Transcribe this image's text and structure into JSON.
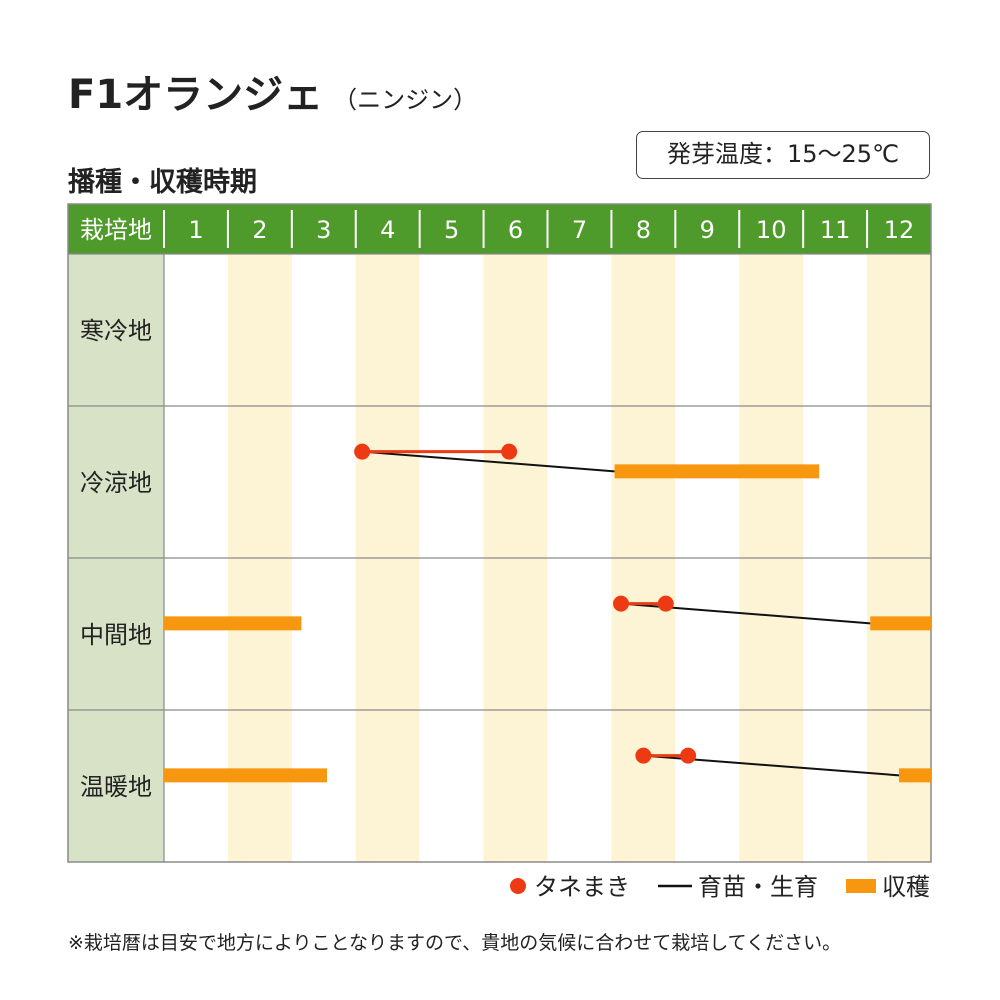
{
  "title": "F1オランジェ",
  "subtitle": "（ニンジン）",
  "section_title": "播種・収穫時期",
  "germination_temp": "発芽温度：15〜25℃",
  "footnote": "※栽培暦は目安で地方によりことなりますので、貴地の気候に合わせて栽培してください。",
  "colors": {
    "header_green": "#4e9a2a",
    "region_bg": "#d7e2c7",
    "stripe": "#fdf4d6",
    "sowing": "#ee3a12",
    "seedling": "#111111",
    "harvest": "#f7960f",
    "grid": "#8a8a8a"
  },
  "chart_data": {
    "type": "table",
    "header_label": "栽培地",
    "months": [
      "1",
      "2",
      "3",
      "4",
      "5",
      "6",
      "7",
      "8",
      "9",
      "10",
      "11",
      "12"
    ],
    "regions": [
      {
        "name": "寒冷地",
        "sowing": [],
        "seedling": [],
        "harvest": []
      },
      {
        "name": "冷涼地",
        "sowing": [
          [
            4.1,
            6.4
          ]
        ],
        "seedling": [
          [
            4.1,
            8.05
          ]
        ],
        "harvest": [
          [
            8.05,
            11.25
          ]
        ]
      },
      {
        "name": "中間地",
        "sowing": [
          [
            8.15,
            8.85
          ]
        ],
        "seedling": [
          [
            8.15,
            12.05
          ]
        ],
        "harvest": [
          [
            1.0,
            3.15
          ],
          [
            12.05,
            13.0
          ]
        ]
      },
      {
        "name": "温暖地",
        "sowing": [
          [
            8.5,
            9.2
          ]
        ],
        "seedling": [
          [
            8.5,
            12.5
          ]
        ],
        "harvest": [
          [
            1.0,
            3.55
          ],
          [
            12.5,
            13.0
          ]
        ]
      }
    ],
    "legend": [
      {
        "symbol": "dot",
        "label": "タネまき"
      },
      {
        "symbol": "line",
        "label": "育苗・生育"
      },
      {
        "symbol": "bar",
        "label": "収穫"
      }
    ]
  }
}
